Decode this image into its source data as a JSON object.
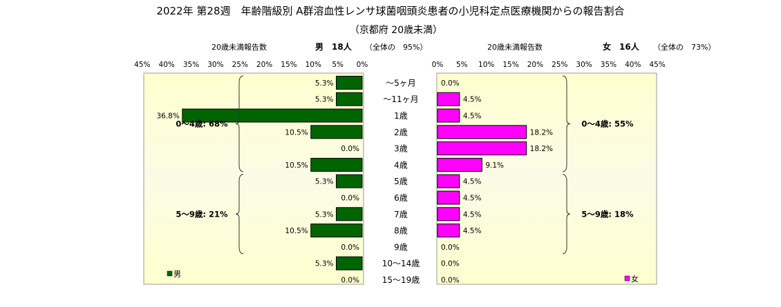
{
  "chart_data": {
    "type": "bar",
    "orientation": "horizontal-butterfly",
    "title": "2022年 第28週　年齢階級別 A群溶血性レンサ球菌咽頭炎患者の小児科定点医療機関からの報告割合",
    "subtitle": "（京都府 20歳未満）",
    "categories": [
      "～5ヶ月",
      "～11ヶ月",
      "1歳",
      "2歳",
      "3歳",
      "4歳",
      "5歳",
      "6歳",
      "7歳",
      "8歳",
      "9歳",
      "10～14歳",
      "15～19歳"
    ],
    "xlim": [
      0,
      45
    ],
    "tick_labels": [
      "0%",
      "5%",
      "10%",
      "15%",
      "20%",
      "25%",
      "30%",
      "35%",
      "40%",
      "45%"
    ],
    "grid": false,
    "series": [
      {
        "name": "男",
        "side": "left",
        "color": "#006400",
        "values": [
          5.3,
          5.3,
          36.8,
          10.5,
          0.0,
          10.5,
          5.3,
          0.0,
          5.3,
          10.5,
          0.0,
          5.3,
          0.0
        ],
        "data_labels": [
          "5.3%",
          "5.3%",
          "36.8%",
          "10.5%",
          "0.0%",
          "10.5%",
          "5.3%",
          "0.0%",
          "5.3%",
          "10.5%",
          "0.0%",
          "5.3%",
          "0.0%"
        ],
        "panel_caption": "20歳未満報告数",
        "header": "男　18人",
        "header_note": "（全体の　95%）",
        "groups": [
          {
            "label": "0～4歳: 68%",
            "from": 0,
            "to": 5
          },
          {
            "label": "5～9歳: 21%",
            "from": 6,
            "to": 10
          }
        ]
      },
      {
        "name": "女",
        "side": "right",
        "color": "#ff00ff",
        "values": [
          0.0,
          4.5,
          4.5,
          18.2,
          18.2,
          9.1,
          4.5,
          4.5,
          4.5,
          4.5,
          0.0,
          0.0,
          0.0
        ],
        "data_labels": [
          "0.0%",
          "4.5%",
          "4.5%",
          "18.2%",
          "18.2%",
          "9.1%",
          "4.5%",
          "4.5%",
          "4.5%",
          "4.5%",
          "0.0%",
          "0.0%",
          "0.0%"
        ],
        "panel_caption": "20歳未満報告数",
        "header": "女　16人",
        "header_note": "（全体の　73%）",
        "groups": [
          {
            "label": "0～4歳: 55%",
            "from": 0,
            "to": 5
          },
          {
            "label": "5～9歳: 18%",
            "from": 6,
            "to": 10
          }
        ]
      }
    ],
    "colors": {
      "panel_edge": "#ffffcc",
      "panel_center": "#fafacc",
      "panel_border": "#999999"
    }
  }
}
